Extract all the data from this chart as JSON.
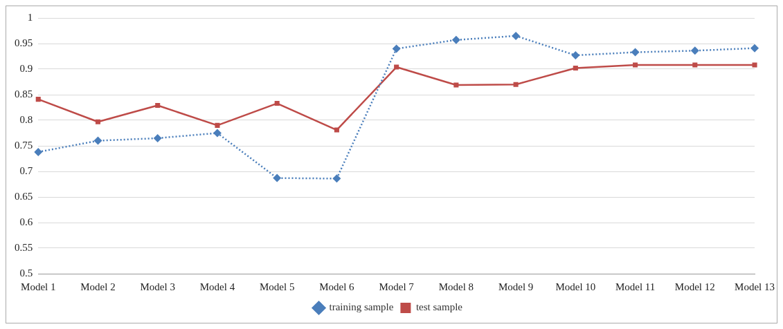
{
  "chart_data": {
    "type": "line",
    "categories": [
      "Model 1",
      "Model 2",
      "Model 3",
      "Model 4",
      "Model 5",
      "Model 6",
      "Model 7",
      "Model 8",
      "Model 9",
      "Model 10",
      "Model 11",
      "Model 12",
      "Model 13"
    ],
    "series": [
      {
        "name": "training sample",
        "color": "#4a7ebb",
        "marker": "diamond",
        "line_style": "dotted",
        "values": [
          0.738,
          0.76,
          0.765,
          0.775,
          0.687,
          0.686,
          0.94,
          0.957,
          0.965,
          0.927,
          0.933,
          0.936,
          0.941
        ]
      },
      {
        "name": "test sample",
        "color": "#be4b48",
        "marker": "square",
        "line_style": "solid",
        "values": [
          0.841,
          0.797,
          0.829,
          0.79,
          0.833,
          0.781,
          0.904,
          0.869,
          0.87,
          0.902,
          0.908,
          0.908,
          0.908
        ]
      }
    ],
    "ylim": [
      0.5,
      1
    ],
    "yticks": [
      0.5,
      0.55,
      0.6,
      0.65,
      0.7,
      0.75,
      0.8,
      0.85,
      0.9,
      0.95,
      1
    ],
    "grid": "y",
    "legend": "bottom"
  }
}
